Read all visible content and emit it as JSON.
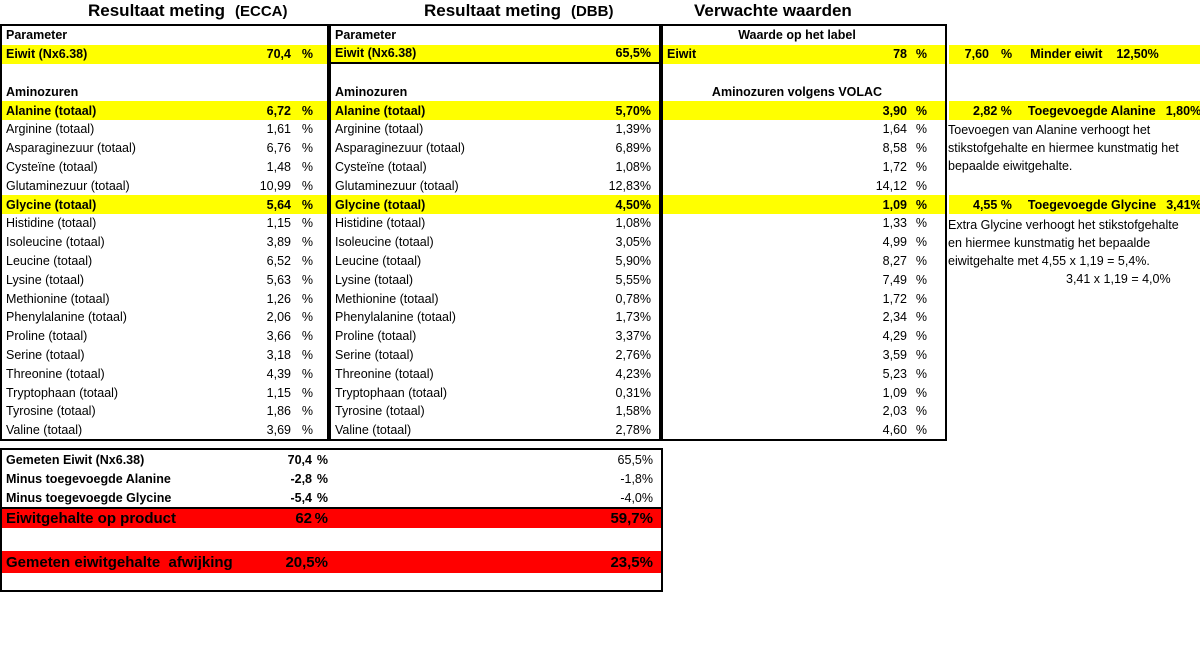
{
  "colors": {
    "highlight": "#ffff00",
    "alert": "#ff0000",
    "border": "#000000",
    "background": "#ffffff"
  },
  "titles": {
    "ecca_main": "Resultaat meting",
    "ecca_suffix": "(ECCA)",
    "dbb_main": "Resultaat meting",
    "dbb_suffix": "(DBB)",
    "expected": "Verwachte waarden"
  },
  "ecca_table": {
    "rows": [
      {
        "label": "Parameter",
        "value": "",
        "unit": "",
        "style": "header"
      },
      {
        "label": "Eiwit (Nx6.38)",
        "value": "70,4",
        "unit": "%",
        "style": "hl"
      },
      {
        "label": "",
        "value": "",
        "unit": "",
        "style": "empty"
      },
      {
        "label": "Aminozuren",
        "value": "",
        "unit": "",
        "style": "header"
      },
      {
        "label": "Alanine (totaal)",
        "value": "6,72",
        "unit": "%",
        "style": "hl"
      },
      {
        "label": "Arginine (totaal)",
        "value": "1,61",
        "unit": "%",
        "style": ""
      },
      {
        "label": "Asparaginezuur (totaal)",
        "value": "6,76",
        "unit": "%",
        "style": ""
      },
      {
        "label": "Cysteïne (totaal)",
        "value": "1,48",
        "unit": "%",
        "style": ""
      },
      {
        "label": "Glutaminezuur (totaal)",
        "value": "10,99",
        "unit": "%",
        "style": ""
      },
      {
        "label": "Glycine (totaal)",
        "value": "5,64",
        "unit": "%",
        "style": "hl"
      },
      {
        "label": "Histidine (totaal)",
        "value": "1,15",
        "unit": "%",
        "style": ""
      },
      {
        "label": "Isoleucine (totaal)",
        "value": "3,89",
        "unit": "%",
        "style": ""
      },
      {
        "label": "Leucine (totaal)",
        "value": "6,52",
        "unit": "%",
        "style": ""
      },
      {
        "label": "Lysine (totaal)",
        "value": "5,63",
        "unit": "%",
        "style": ""
      },
      {
        "label": "Methionine (totaal)",
        "value": "1,26",
        "unit": "%",
        "style": ""
      },
      {
        "label": "Phenylalanine (totaal)",
        "value": "2,06",
        "unit": "%",
        "style": ""
      },
      {
        "label": "Proline (totaal)",
        "value": "3,66",
        "unit": "%",
        "style": ""
      },
      {
        "label": "Serine (totaal)",
        "value": "3,18",
        "unit": "%",
        "style": ""
      },
      {
        "label": "Threonine (totaal)",
        "value": "4,39",
        "unit": "%",
        "style": ""
      },
      {
        "label": "Tryptophaan (totaal)",
        "value": "1,15",
        "unit": "%",
        "style": ""
      },
      {
        "label": "Tyrosine (totaal)",
        "value": "1,86",
        "unit": "%",
        "style": ""
      },
      {
        "label": "Valine (totaal)",
        "value": "3,69",
        "unit": "%",
        "style": ""
      }
    ]
  },
  "dbb_table": {
    "rows": [
      {
        "label": "Parameter",
        "value": "",
        "unit": "",
        "style": "header"
      },
      {
        "label": "Eiwit (Nx6.38)",
        "value": "65,5%",
        "unit": "",
        "style": "hl underline"
      },
      {
        "label": "",
        "value": "",
        "unit": "",
        "style": "empty"
      },
      {
        "label": "Aminozuren",
        "value": "",
        "unit": "",
        "style": "header"
      },
      {
        "label": "Alanine (totaal)",
        "value": "5,70%",
        "unit": "",
        "style": "hl"
      },
      {
        "label": "Arginine (totaal)",
        "value": "1,39%",
        "unit": "",
        "style": ""
      },
      {
        "label": "Asparaginezuur (totaal)",
        "value": "6,89%",
        "unit": "",
        "style": ""
      },
      {
        "label": "Cysteïne (totaal)",
        "value": "1,08%",
        "unit": "",
        "style": ""
      },
      {
        "label": "Glutaminezuur (totaal)",
        "value": "12,83%",
        "unit": "",
        "style": ""
      },
      {
        "label": "Glycine (totaal)",
        "value": "4,50%",
        "unit": "",
        "style": "hl"
      },
      {
        "label": "Histidine (totaal)",
        "value": "1,08%",
        "unit": "",
        "style": ""
      },
      {
        "label": "Isoleucine (totaal)",
        "value": "3,05%",
        "unit": "",
        "style": ""
      },
      {
        "label": "Leucine (totaal)",
        "value": "5,90%",
        "unit": "",
        "style": ""
      },
      {
        "label": "Lysine (totaal)",
        "value": "5,55%",
        "unit": "",
        "style": ""
      },
      {
        "label": "Methionine (totaal)",
        "value": "0,78%",
        "unit": "",
        "style": ""
      },
      {
        "label": "Phenylalanine (totaal)",
        "value": "1,73%",
        "unit": "",
        "style": ""
      },
      {
        "label": "Proline (totaal)",
        "value": "3,37%",
        "unit": "",
        "style": ""
      },
      {
        "label": "Serine (totaal)",
        "value": "2,76%",
        "unit": "",
        "style": ""
      },
      {
        "label": "Threonine (totaal)",
        "value": "4,23%",
        "unit": "",
        "style": ""
      },
      {
        "label": "Tryptophaan (totaal)",
        "value": "0,31%",
        "unit": "",
        "style": ""
      },
      {
        "label": "Tyrosine (totaal)",
        "value": "1,58%",
        "unit": "",
        "style": ""
      },
      {
        "label": "Valine (totaal)",
        "value": "2,78%",
        "unit": "",
        "style": ""
      }
    ]
  },
  "expected_table": {
    "rows": [
      {
        "label": "Waarde op het label",
        "value": "",
        "unit": "",
        "style": "center"
      },
      {
        "label": "Eiwit",
        "value": "78",
        "unit": "%",
        "style": "hl"
      },
      {
        "label": "",
        "value": "",
        "unit": "",
        "style": "empty"
      },
      {
        "label": "Aminozuren volgens VOLAC",
        "value": "",
        "unit": "",
        "style": "center"
      },
      {
        "label": "",
        "value": "3,90",
        "unit": "%",
        "style": "hl"
      },
      {
        "label": "",
        "value": "1,64",
        "unit": "%",
        "style": ""
      },
      {
        "label": "",
        "value": "8,58",
        "unit": "%",
        "style": ""
      },
      {
        "label": "",
        "value": "1,72",
        "unit": "%",
        "style": ""
      },
      {
        "label": "",
        "value": "14,12",
        "unit": "%",
        "style": ""
      },
      {
        "label": "",
        "value": "1,09",
        "unit": "%",
        "style": "hl"
      },
      {
        "label": "",
        "value": "1,33",
        "unit": "%",
        "style": ""
      },
      {
        "label": "",
        "value": "4,99",
        "unit": "%",
        "style": ""
      },
      {
        "label": "",
        "value": "8,27",
        "unit": "%",
        "style": ""
      },
      {
        "label": "",
        "value": "7,49",
        "unit": "%",
        "style": ""
      },
      {
        "label": "",
        "value": "1,72",
        "unit": "%",
        "style": ""
      },
      {
        "label": "",
        "value": "2,34",
        "unit": "%",
        "style": ""
      },
      {
        "label": "",
        "value": "4,29",
        "unit": "%",
        "style": ""
      },
      {
        "label": "",
        "value": "3,59",
        "unit": "%",
        "style": ""
      },
      {
        "label": "",
        "value": "5,23",
        "unit": "%",
        "style": ""
      },
      {
        "label": "",
        "value": "1,09",
        "unit": "%",
        "style": ""
      },
      {
        "label": "",
        "value": "2,03",
        "unit": "%",
        "style": ""
      },
      {
        "label": "",
        "value": "4,60",
        "unit": "%",
        "style": ""
      }
    ]
  },
  "annotations": {
    "eiwit": {
      "value": "7,60",
      "unit": "%",
      "label": "Minder eiwit",
      "value2": "12,50%"
    },
    "alanine": {
      "value": "2,82 %",
      "label": "Toegevoegde Alanine",
      "value2": "1,80%"
    },
    "alanine_note": [
      "Toevoegen van Alanine verhoogt het",
      "stikstofgehalte en hiermee kunstmatig het",
      "bepaalde eiwitgehalte."
    ],
    "glycine": {
      "value": "4,55 %",
      "label": "Toegevoegde Glycine",
      "value2": "3,41%"
    },
    "glycine_note": [
      "Extra Glycine verhoogt het stikstofgehalte",
      "en hiermee kunstmatig het bepaalde",
      "eiwitgehalte met 4,55 x 1,19 = 5,4%."
    ],
    "glycine_note_extra": "3,41 x 1,19 = 4,0%"
  },
  "summary_table": {
    "rows": [
      {
        "label": "Gemeten Eiwit (Nx6.38)",
        "value": "70,4",
        "unit": "%",
        "value2": "65,5%",
        "style": ""
      },
      {
        "label": "Minus toegevoegde Alanine",
        "value": "-2,8",
        "unit": "%",
        "value2": "-1,8%",
        "style": ""
      },
      {
        "label": "Minus toegevoegde Glycine",
        "value": "-5,4",
        "unit": "%",
        "value2": "-4,0%",
        "style": ""
      },
      {
        "label": "Eiwitgehalte op product",
        "value": "62",
        "unit": "%",
        "value2": "59,7%",
        "style": "red"
      },
      {
        "label": "",
        "value": "",
        "unit": "",
        "value2": "",
        "style": "gap"
      },
      {
        "label": "Gemeten eiwitgehalte  afwijking",
        "value": "20,5%",
        "unit": "",
        "value2": "23,5%",
        "style": "red red2"
      }
    ]
  }
}
